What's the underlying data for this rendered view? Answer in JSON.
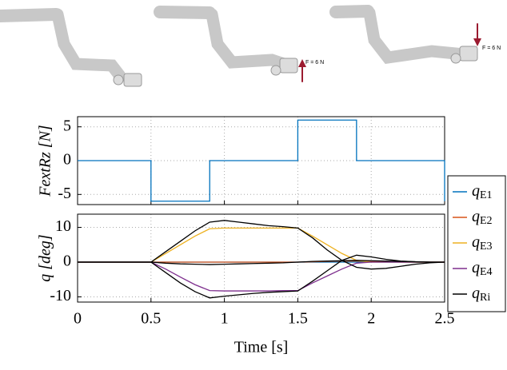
{
  "annotations": [
    "F = 6 N",
    "F = 6 N"
  ],
  "chart_data": [
    {
      "type": "line",
      "ylabel": "FextRz [N]",
      "xlim": [
        0,
        2.5
      ],
      "xticks": [
        0,
        0.5,
        1,
        1.5,
        2,
        2.5
      ],
      "ylim": [
        -6.5,
        6.5
      ],
      "yticks": [
        -5,
        0,
        5
      ],
      "grid": true,
      "x": [
        0,
        0.5,
        0.5,
        0.9,
        0.9,
        1.5,
        1.5,
        1.9,
        1.9,
        2.5,
        2.5
      ],
      "series": [
        {
          "color": "#0072bd",
          "values": [
            0,
            0,
            -6,
            -6,
            0,
            0,
            6,
            6,
            0,
            0,
            -6
          ]
        }
      ]
    },
    {
      "type": "line",
      "ylabel": "q [deg]",
      "xlabel": "Time [s]",
      "xlim": [
        0,
        2.5
      ],
      "xticks": [
        0,
        0.5,
        1,
        1.5,
        2,
        2.5
      ],
      "ylim": [
        -11.5,
        13.8
      ],
      "yticks": [
        -10,
        0,
        10
      ],
      "grid": true,
      "legend": "outside right",
      "x": [
        0,
        0.5,
        0.6,
        0.7,
        0.8,
        0.9,
        1.0,
        1.1,
        1.2,
        1.3,
        1.4,
        1.5,
        1.6,
        1.7,
        1.8,
        1.9,
        2.0,
        2.1,
        2.2,
        2.3,
        2.4,
        2.5
      ],
      "series": [
        {
          "name": "qE1",
          "color": "#0072bd",
          "values": [
            0,
            0,
            0,
            0,
            0,
            0,
            0,
            0,
            0,
            0,
            0,
            0,
            0,
            0,
            0,
            0,
            0,
            0,
            0,
            0,
            0,
            0
          ]
        },
        {
          "name": "qE2",
          "color": "#d95319",
          "values": [
            0,
            0,
            0,
            0,
            0,
            0,
            0,
            0,
            0,
            0,
            0,
            0,
            0.1,
            0.2,
            0.3,
            0.3,
            0.2,
            0.1,
            0,
            0,
            0,
            0
          ]
        },
        {
          "name": "qE3",
          "color": "#edb120",
          "values": [
            0,
            0,
            2.5,
            5,
            7.5,
            9.6,
            9.8,
            9.8,
            9.8,
            9.8,
            9.8,
            9.8,
            7.5,
            5,
            2.5,
            0.5,
            0,
            0,
            0,
            0,
            0,
            0
          ]
        },
        {
          "name": "qE4",
          "color": "#7e2f8e",
          "values": [
            0,
            0,
            -2,
            -4.3,
            -6.5,
            -8.2,
            -8.3,
            -8.3,
            -8.3,
            -8.3,
            -8.2,
            -8.2,
            -6,
            -4,
            -2,
            -0.3,
            0,
            0,
            0,
            0,
            0,
            0
          ]
        },
        {
          "name": "qRi",
          "color": "#000000",
          "values": [
            0,
            0,
            3,
            6,
            9,
            11.5,
            12,
            11.5,
            11,
            10.5,
            10.2,
            9.8,
            7,
            3.5,
            0.5,
            -1.5,
            -2,
            -1.8,
            -1.2,
            -0.6,
            -0.2,
            0
          ]
        },
        {
          "color": "#000000",
          "values": [
            0,
            0,
            -3,
            -6,
            -8.5,
            -10.3,
            -9.8,
            -9.4,
            -9,
            -8.7,
            -8.5,
            -8.3,
            -5.5,
            -2.5,
            0.5,
            2,
            1.5,
            0.8,
            0.3,
            0.1,
            0,
            0
          ]
        },
        {
          "color": "#000000",
          "values": [
            0,
            0,
            -0.3,
            -0.5,
            -0.6,
            -0.7,
            -0.6,
            -0.5,
            -0.4,
            -0.3,
            -0.2,
            0,
            0.2,
            0.3,
            0.4,
            0.5,
            0.4,
            0.3,
            0.2,
            0.1,
            0,
            0
          ]
        }
      ]
    }
  ]
}
